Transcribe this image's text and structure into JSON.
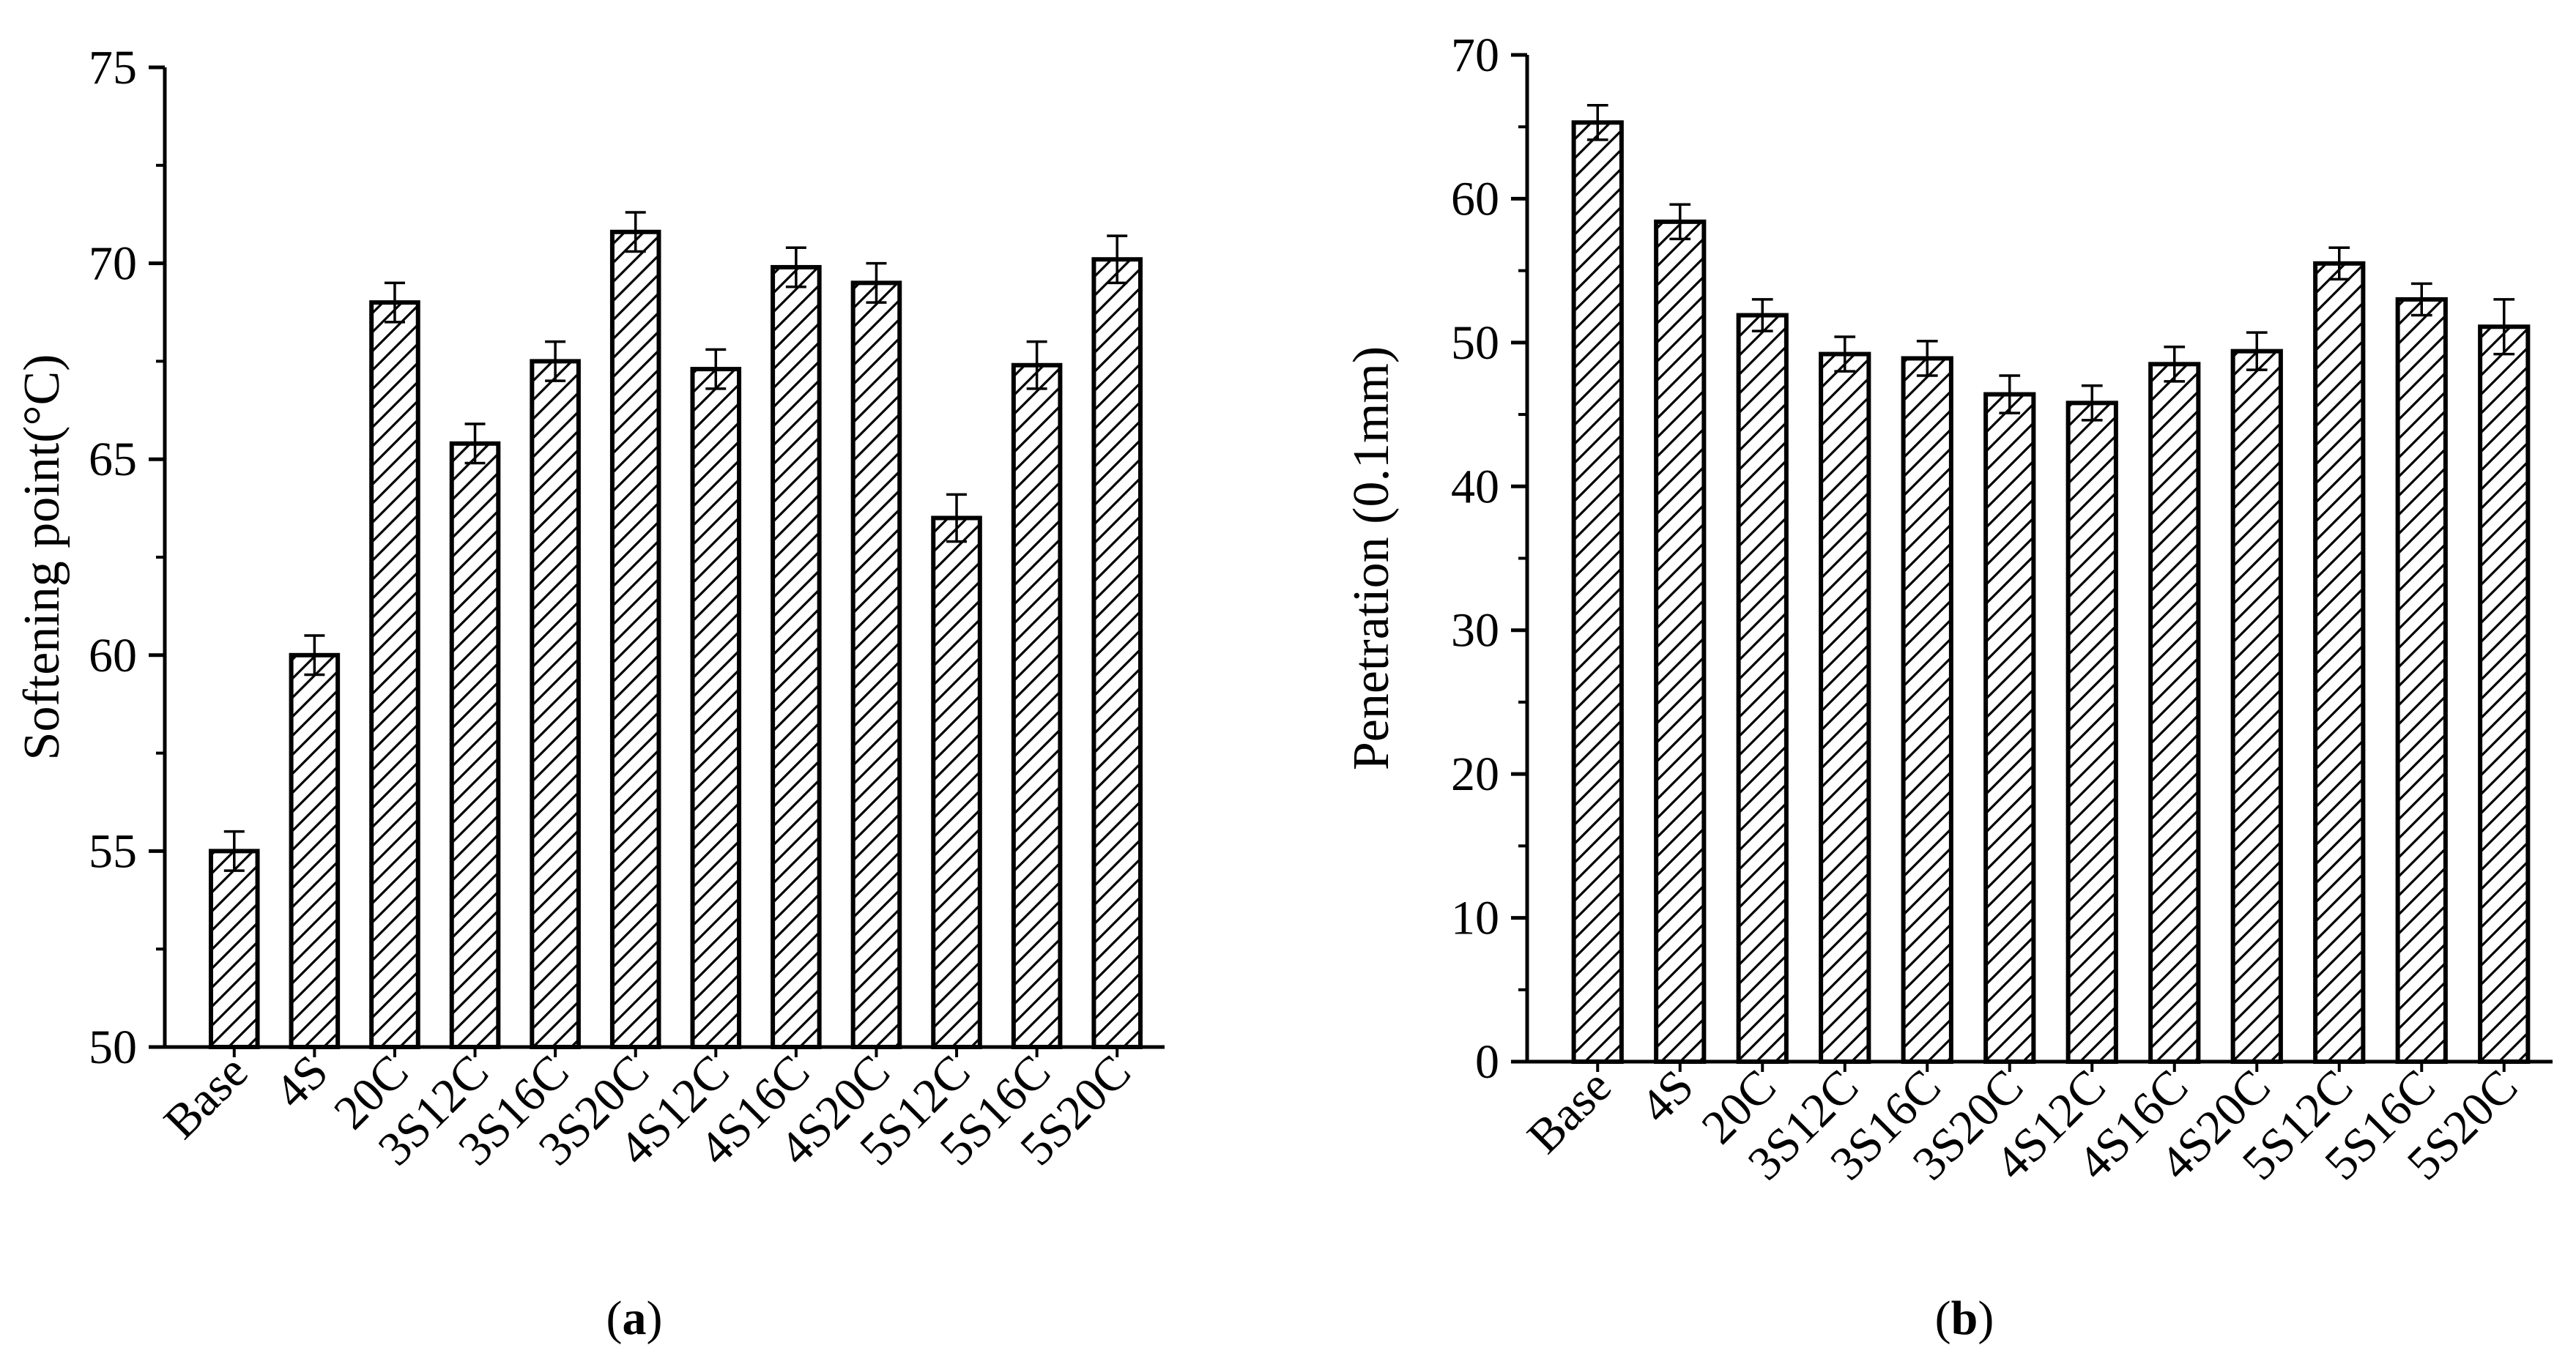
{
  "chart_data": [
    {
      "type": "bar",
      "panel_label": "a",
      "title": "",
      "xlabel": "",
      "ylabel": "Softening point(°C)",
      "ylim": [
        50,
        75
      ],
      "yticks": [
        50,
        55,
        60,
        65,
        70,
        75
      ],
      "grid": false,
      "bar_fill": "diagonal hatch",
      "categories": [
        "Base",
        "4S",
        "20C",
        "3S12C",
        "3S16C",
        "3S20C",
        "4S12C",
        "4S16C",
        "4S20C",
        "5S12C",
        "5S16C",
        "5S20C"
      ],
      "values": [
        55.0,
        60.0,
        69.0,
        65.4,
        67.5,
        70.8,
        67.3,
        69.9,
        69.5,
        63.5,
        67.4,
        70.1
      ],
      "errors": [
        0.5,
        0.5,
        0.5,
        0.5,
        0.5,
        0.5,
        0.5,
        0.5,
        0.5,
        0.6,
        0.6,
        0.6
      ]
    },
    {
      "type": "bar",
      "panel_label": "b",
      "title": "",
      "xlabel": "",
      "ylabel": "Penetration (0.1mm)",
      "ylim": [
        0,
        70
      ],
      "yticks": [
        0,
        10,
        20,
        30,
        40,
        50,
        60,
        70
      ],
      "grid": false,
      "bar_fill": "diagonal hatch",
      "categories": [
        "Base",
        "4S",
        "20C",
        "3S12C",
        "3S16C",
        "3S20C",
        "4S12C",
        "4S16C",
        "4S20C",
        "5S12C",
        "5S16C",
        "5S20C"
      ],
      "values": [
        65.3,
        58.4,
        51.9,
        49.2,
        48.9,
        46.4,
        45.8,
        48.5,
        49.4,
        55.5,
        53.0,
        51.1
      ],
      "errors": [
        1.2,
        1.2,
        1.1,
        1.2,
        1.2,
        1.3,
        1.2,
        1.2,
        1.3,
        1.1,
        1.1,
        1.9
      ]
    }
  ],
  "colors": {
    "ink": "#000000",
    "background": "#ffffff",
    "bar_fill": "#ffffff"
  }
}
